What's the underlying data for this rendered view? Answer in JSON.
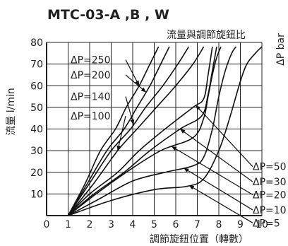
{
  "chart_data": {
    "type": "line",
    "title": "MTC-03-A ,B , W",
    "subtitle": "流量與調節旋鈕比",
    "xlabel": "調節旋鈕位置（轉數）",
    "ylabel": "流量 l/min",
    "y2label": "ΔP bar",
    "xlim": [
      0,
      10
    ],
    "ylim": [
      0,
      80
    ],
    "x_ticks": [
      "0",
      "1",
      "2",
      "3",
      "4",
      "5",
      "6",
      "7",
      "8",
      "9",
      "10"
    ],
    "y_ticks": [
      "10",
      "20",
      "30",
      "40",
      "50",
      "60",
      "70",
      "80"
    ],
    "grid": true,
    "series": [
      {
        "name": "ΔP=5",
        "points": [
          [
            1,
            0
          ],
          [
            3,
            7
          ],
          [
            5,
            12
          ],
          [
            6.5,
            13.5
          ],
          [
            7.3,
            17
          ],
          [
            8,
            30
          ],
          [
            8.5,
            45
          ],
          [
            9,
            62
          ],
          [
            9.3,
            70
          ],
          [
            9.7,
            75
          ],
          [
            10,
            78
          ]
        ]
      },
      {
        "name": "ΔP=10",
        "points": [
          [
            1,
            0
          ],
          [
            2.5,
            8
          ],
          [
            4,
            16
          ],
          [
            5.5,
            20
          ],
          [
            6.8,
            23
          ],
          [
            7.3,
            27
          ],
          [
            7.7,
            40
          ],
          [
            8,
            55
          ],
          [
            8.3,
            67
          ],
          [
            8.6,
            75
          ],
          [
            8.8,
            78
          ]
        ]
      },
      {
        "name": "ΔP=20",
        "points": [
          [
            1,
            0
          ],
          [
            2.3,
            10
          ],
          [
            3.7,
            20
          ],
          [
            5.3,
            30
          ],
          [
            6.8,
            36
          ],
          [
            7.3,
            45
          ],
          [
            7.5,
            55
          ],
          [
            7.7,
            65
          ],
          [
            7.9,
            73
          ],
          [
            8.1,
            78
          ]
        ]
      },
      {
        "name": "ΔP=30",
        "points": [
          [
            1,
            0
          ],
          [
            2.2,
            10
          ],
          [
            3.6,
            20
          ],
          [
            4.8,
            30
          ],
          [
            6.2,
            40
          ],
          [
            7.2,
            46
          ],
          [
            7.5,
            56
          ],
          [
            7.7,
            67
          ],
          [
            7.9,
            78
          ]
        ]
      },
      {
        "name": "ΔP=50",
        "points": [
          [
            1,
            0
          ],
          [
            2,
            10
          ],
          [
            3.3,
            20
          ],
          [
            4.3,
            30
          ],
          [
            5.5,
            40
          ],
          [
            6.8,
            50
          ],
          [
            7.3,
            54
          ],
          [
            7.5,
            65
          ],
          [
            7.7,
            78
          ]
        ]
      },
      {
        "name": "ΔP=100",
        "points": [
          [
            1,
            0
          ],
          [
            2.2,
            15
          ],
          [
            3.3,
            30
          ],
          [
            4.2,
            40
          ],
          [
            5.1,
            50
          ],
          [
            6,
            60
          ],
          [
            6.8,
            70
          ],
          [
            7.3,
            78
          ]
        ]
      },
      {
        "name": "ΔP=140",
        "points": [
          [
            1,
            0
          ],
          [
            2,
            15
          ],
          [
            3,
            30
          ],
          [
            3.9,
            40
          ],
          [
            4.6,
            50
          ],
          [
            5.4,
            60
          ],
          [
            6.1,
            70
          ],
          [
            6.6,
            78
          ]
        ]
      },
      {
        "name": "ΔP=200",
        "points": [
          [
            1,
            0
          ],
          [
            1.9,
            15
          ],
          [
            2.8,
            30
          ],
          [
            3.6,
            40
          ],
          [
            4.2,
            50
          ],
          [
            4.8,
            60
          ],
          [
            5.3,
            70
          ],
          [
            5.7,
            78
          ]
        ]
      },
      {
        "name": "ΔP=250",
        "points": [
          [
            1,
            0
          ],
          [
            1.8,
            15
          ],
          [
            2.5,
            30
          ],
          [
            3.2,
            40
          ],
          [
            3.7,
            50
          ],
          [
            4.3,
            60
          ],
          [
            4.8,
            70
          ],
          [
            5.2,
            78
          ]
        ]
      }
    ],
    "left_labels": [
      {
        "text": "ΔP=250",
        "series": "ΔP=250"
      },
      {
        "text": "ΔP=200",
        "series": "ΔP=200"
      },
      {
        "text": "ΔP=140",
        "series": "ΔP=140"
      },
      {
        "text": "ΔP=100",
        "series": "ΔP=100"
      }
    ],
    "right_labels": [
      {
        "text": "ΔP=50",
        "series": "ΔP=50"
      },
      {
        "text": "ΔP=30",
        "series": "ΔP=30"
      },
      {
        "text": "ΔP=20",
        "series": "ΔP=20"
      },
      {
        "text": "ΔP=10",
        "series": "ΔP=10"
      },
      {
        "text": "ΔP=5",
        "series": "ΔP=5"
      }
    ]
  }
}
